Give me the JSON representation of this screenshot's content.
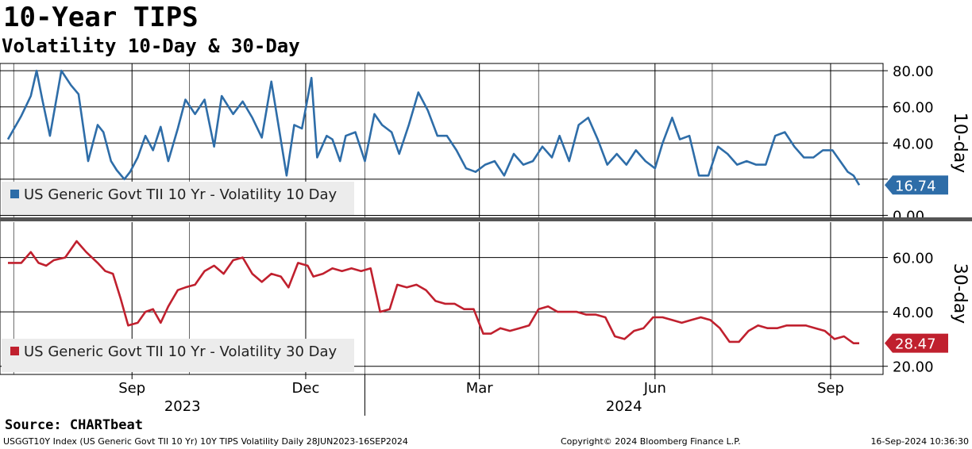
{
  "title": "10-Year TIPS",
  "subtitle": "Volatility 10-Day & 30-Day",
  "source": "Source: CHARTbeat",
  "footer": {
    "left": "USGGT10Y Index (US Generic Govt TII 10 Yr) 10Y TIPS Volatility  Daily 28JUN2023-16SEP2024",
    "middle": "Copyright© 2024 Bloomberg Finance L.P.",
    "right": "16-Sep-2024 10:36:30"
  },
  "colors": {
    "ten_day": "#2e6da8",
    "thirty_day": "#c0202e",
    "legend_bg": "#ececec",
    "divider": "#555555"
  },
  "chart_data": [
    {
      "type": "line",
      "panel_label": "10-day",
      "legend": "US Generic Govt TII 10 Yr - Volatility 10 Day",
      "ylim": [
        -2,
        84
      ],
      "yticks": [
        0,
        20,
        40,
        60,
        80
      ],
      "ytick_labels": [
        "0.00",
        "",
        "40.00",
        "60.00",
        "80.00"
      ],
      "last_value_label": "16.74",
      "last_value": 16.74,
      "x_start": "2023-06-28",
      "x_end": "2024-09-16",
      "series": [
        {
          "name": "US Generic Govt TII 10 Yr - Volatility 10 Day",
          "dates": [
            "2023-06-28",
            "2023-07-05",
            "2023-07-10",
            "2023-07-13",
            "2023-07-16",
            "2023-07-20",
            "2023-07-26",
            "2023-07-31",
            "2023-08-04",
            "2023-08-09",
            "2023-08-14",
            "2023-08-17",
            "2023-08-21",
            "2023-08-24",
            "2023-08-28",
            "2023-08-31",
            "2023-09-04",
            "2023-09-08",
            "2023-09-12",
            "2023-09-16",
            "2023-09-20",
            "2023-09-25",
            "2023-09-29",
            "2023-10-04",
            "2023-10-09",
            "2023-10-14",
            "2023-10-18",
            "2023-10-24",
            "2023-10-29",
            "2023-11-03",
            "2023-11-08",
            "2023-11-13",
            "2023-11-17",
            "2023-11-21",
            "2023-11-25",
            "2023-11-29",
            "2023-12-04",
            "2023-12-07",
            "2023-12-12",
            "2023-12-15",
            "2023-12-19",
            "2023-12-22",
            "2023-12-27",
            "2024-01-01",
            "2024-01-06",
            "2024-01-10",
            "2024-01-15",
            "2024-01-19",
            "2024-01-24",
            "2024-01-29",
            "2024-02-03",
            "2024-02-08",
            "2024-02-13",
            "2024-02-18",
            "2024-02-23",
            "2024-02-28",
            "2024-03-04",
            "2024-03-09",
            "2024-03-14",
            "2024-03-19",
            "2024-03-24",
            "2024-03-29",
            "2024-04-03",
            "2024-04-08",
            "2024-04-12",
            "2024-04-17",
            "2024-04-22",
            "2024-04-27",
            "2024-05-02",
            "2024-05-07",
            "2024-05-12",
            "2024-05-17",
            "2024-05-22",
            "2024-05-27",
            "2024-06-01",
            "2024-06-05",
            "2024-06-10",
            "2024-06-14",
            "2024-06-19",
            "2024-06-24",
            "2024-06-29",
            "2024-07-04",
            "2024-07-09",
            "2024-07-14",
            "2024-07-19",
            "2024-07-24",
            "2024-07-29",
            "2024-08-03",
            "2024-08-08",
            "2024-08-13",
            "2024-08-18",
            "2024-08-23",
            "2024-08-28",
            "2024-09-02",
            "2024-09-06",
            "2024-09-10",
            "2024-09-13",
            "2024-09-16"
          ],
          "values": [
            42,
            55,
            66,
            80,
            64,
            44,
            80,
            72,
            67,
            30,
            50,
            46,
            30,
            25,
            20,
            24,
            32,
            44,
            36,
            49,
            30,
            48,
            64,
            56,
            64,
            38,
            66,
            56,
            63,
            54,
            43,
            74,
            48,
            22,
            50,
            48,
            76,
            32,
            44,
            42,
            30,
            44,
            46,
            30,
            56,
            50,
            46,
            34,
            50,
            68,
            58,
            44,
            44,
            36,
            26,
            24,
            28,
            30,
            22,
            34,
            28,
            30,
            38,
            32,
            44,
            30,
            50,
            54,
            42,
            28,
            34,
            28,
            36,
            30,
            26,
            40,
            54,
            42,
            44,
            22,
            22,
            38,
            34,
            28,
            30,
            28,
            28,
            44,
            46,
            38,
            32,
            32,
            36,
            36,
            30,
            24,
            22,
            16.74
          ]
        }
      ]
    },
    {
      "type": "line",
      "panel_label": "30-day",
      "legend": "US Generic Govt TII 10 Yr - Volatility 30 Day",
      "ylim": [
        17,
        73
      ],
      "yticks": [
        20,
        40,
        60
      ],
      "ytick_labels": [
        "20.00",
        "40.00",
        "60.00"
      ],
      "last_value_label": "28.47",
      "last_value": 28.47,
      "x_start": "2023-06-28",
      "x_end": "2024-09-16",
      "series": [
        {
          "name": "US Generic Govt TII 10 Yr - Volatility 30 Day",
          "dates": [
            "2023-06-28",
            "2023-07-05",
            "2023-07-10",
            "2023-07-14",
            "2023-07-18",
            "2023-07-22",
            "2023-07-28",
            "2023-08-03",
            "2023-08-08",
            "2023-08-14",
            "2023-08-18",
            "2023-08-22",
            "2023-08-26",
            "2023-08-30",
            "2023-09-04",
            "2023-09-08",
            "2023-09-12",
            "2023-09-16",
            "2023-09-20",
            "2023-09-25",
            "2023-09-29",
            "2023-10-04",
            "2023-10-09",
            "2023-10-14",
            "2023-10-19",
            "2023-10-24",
            "2023-10-29",
            "2023-11-03",
            "2023-11-08",
            "2023-11-13",
            "2023-11-18",
            "2023-11-22",
            "2023-11-27",
            "2023-12-02",
            "2023-12-05",
            "2023-12-10",
            "2023-12-15",
            "2023-12-20",
            "2023-12-25",
            "2023-12-30",
            "2024-01-04",
            "2024-01-09",
            "2024-01-14",
            "2024-01-18",
            "2024-01-23",
            "2024-01-28",
            "2024-02-02",
            "2024-02-07",
            "2024-02-12",
            "2024-02-17",
            "2024-02-22",
            "2024-02-27",
            "2024-03-03",
            "2024-03-07",
            "2024-03-12",
            "2024-03-17",
            "2024-03-22",
            "2024-03-27",
            "2024-04-01",
            "2024-04-06",
            "2024-04-11",
            "2024-04-16",
            "2024-04-21",
            "2024-04-26",
            "2024-05-01",
            "2024-05-06",
            "2024-05-11",
            "2024-05-16",
            "2024-05-21",
            "2024-05-26",
            "2024-05-31",
            "2024-06-05",
            "2024-06-10",
            "2024-06-15",
            "2024-06-20",
            "2024-06-25",
            "2024-06-30",
            "2024-07-05",
            "2024-07-10",
            "2024-07-15",
            "2024-07-20",
            "2024-07-25",
            "2024-07-30",
            "2024-08-04",
            "2024-08-09",
            "2024-08-14",
            "2024-08-19",
            "2024-08-24",
            "2024-08-29",
            "2024-09-03",
            "2024-09-08",
            "2024-09-13",
            "2024-09-16"
          ],
          "values": [
            58,
            58,
            62,
            58,
            57,
            59,
            60,
            66,
            62,
            58,
            55,
            54,
            45,
            35,
            36,
            40,
            41,
            36,
            42,
            48,
            49,
            50,
            55,
            57,
            54,
            59,
            60,
            54,
            51,
            54,
            53,
            49,
            58,
            57,
            53,
            54,
            56,
            55,
            56,
            55,
            56,
            40,
            41,
            50,
            49,
            50,
            48,
            44,
            43,
            43,
            41,
            41,
            32,
            32,
            34,
            33,
            34,
            35,
            41,
            42,
            40,
            40,
            40,
            39,
            39,
            38,
            31,
            30,
            33,
            34,
            38,
            38,
            37,
            36,
            37,
            38,
            37,
            34,
            29,
            29,
            33,
            35,
            34,
            34,
            35,
            35,
            35,
            34,
            33,
            30,
            31,
            28.47,
            28.47
          ]
        }
      ]
    }
  ],
  "x_axis": {
    "ticks": [
      {
        "date": "2023-09-01",
        "label": "Sep"
      },
      {
        "date": "2023-12-01",
        "label": "Dec"
      },
      {
        "date": "2024-03-01",
        "label": "Mar"
      },
      {
        "date": "2024-06-01",
        "label": "Jun"
      },
      {
        "date": "2024-09-01",
        "label": "Sep"
      }
    ],
    "years": [
      {
        "label": "2023"
      },
      {
        "label": "2024"
      }
    ],
    "year_divider_date": "2024-01-01"
  }
}
